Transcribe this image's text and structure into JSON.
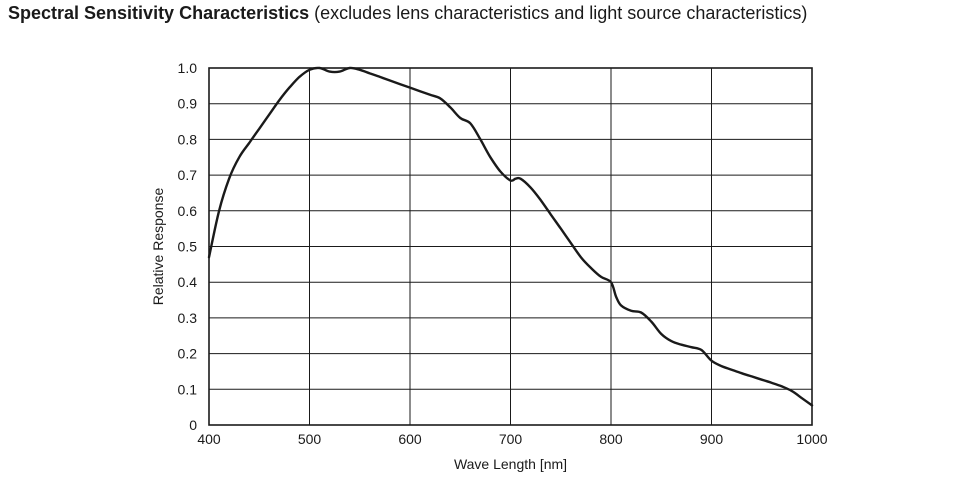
{
  "header": {
    "title_bold": "Spectral Sensitivity Characteristics",
    "title_note": "(excludes lens characteristics and light source characteristics)"
  },
  "chart_data": {
    "type": "line",
    "xlabel": "Wave Length [nm]",
    "ylabel": "Relative Response",
    "xlim": [
      400,
      1000
    ],
    "ylim": [
      0,
      1.0
    ],
    "x_ticks": [
      400,
      500,
      600,
      700,
      800,
      900,
      1000
    ],
    "y_ticks": [
      0,
      0.1,
      0.2,
      0.3,
      0.4,
      0.5,
      0.6,
      0.7,
      0.8,
      0.9,
      1.0
    ],
    "x_tick_labels": [
      "400",
      "500",
      "600",
      "700",
      "800",
      "900",
      "1000"
    ],
    "y_tick_labels": [
      "0",
      "0.1",
      "0.2",
      "0.3",
      "0.4",
      "0.5",
      "0.6",
      "0.7",
      "0.8",
      "0.9",
      "1.0"
    ],
    "grid": true,
    "series": [
      {
        "color": "#1a1a1a",
        "x": [
          400,
          410,
          420,
          430,
          440,
          450,
          460,
          470,
          480,
          490,
          500,
          510,
          520,
          530,
          540,
          550,
          560,
          570,
          580,
          590,
          600,
          610,
          620,
          630,
          640,
          650,
          660,
          670,
          680,
          690,
          700,
          705,
          710,
          720,
          730,
          740,
          750,
          760,
          770,
          780,
          790,
          800,
          805,
          810,
          820,
          830,
          840,
          850,
          860,
          870,
          880,
          890,
          900,
          910,
          920,
          930,
          940,
          950,
          960,
          970,
          980,
          990,
          1000
        ],
        "y": [
          0.47,
          0.6,
          0.69,
          0.75,
          0.79,
          0.83,
          0.87,
          0.91,
          0.945,
          0.975,
          0.995,
          1.0,
          0.99,
          0.99,
          1.0,
          0.995,
          0.985,
          0.975,
          0.965,
          0.955,
          0.945,
          0.935,
          0.925,
          0.915,
          0.89,
          0.86,
          0.845,
          0.8,
          0.75,
          0.71,
          0.685,
          0.69,
          0.69,
          0.665,
          0.63,
          0.59,
          0.55,
          0.51,
          0.47,
          0.44,
          0.415,
          0.4,
          0.36,
          0.335,
          0.32,
          0.315,
          0.29,
          0.255,
          0.235,
          0.225,
          0.218,
          0.21,
          0.18,
          0.165,
          0.155,
          0.145,
          0.136,
          0.127,
          0.118,
          0.108,
          0.095,
          0.075,
          0.055
        ]
      }
    ]
  }
}
